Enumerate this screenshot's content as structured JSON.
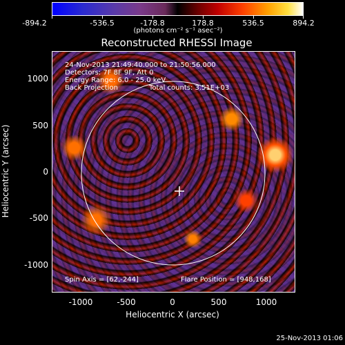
{
  "colorbar": {
    "ticks": [
      "-894.2",
      "-536.5",
      "-178.8",
      "178.8",
      "536.5",
      "894.2"
    ],
    "units": "(photons cm⁻² s⁻¹ asec⁻²)"
  },
  "title": "Reconstructed RHESSI Image",
  "info": {
    "time_range": "24-Nov-2013 21:49:40.000 to 21:50:56.000",
    "detectors": "Detectors: 7F 8F 9F, Att 0",
    "energy": "Energy Range: 6.0 - 25.0 keV",
    "method": "Back Projection",
    "counts": "Total counts: 3.51E+03",
    "spin_axis": "Spin Axis = [62,-244]",
    "flare_position": "Flare Position = [948,168]"
  },
  "axes": {
    "xlabel": "Heliocentric X (arcsec)",
    "ylabel": "Heliocentric Y (arcsec)",
    "xticks": [
      "-1000",
      "-500",
      "0",
      "500",
      "1000"
    ],
    "yticks": [
      "1000",
      "500",
      "0",
      "-500",
      "-1000"
    ]
  },
  "footer": "25-Nov-2013 01:06",
  "colors": {
    "background": "#000000",
    "foreground": "#ffffff",
    "cmap_low": "#0000ff",
    "cmap_high": "#ffffff"
  }
}
